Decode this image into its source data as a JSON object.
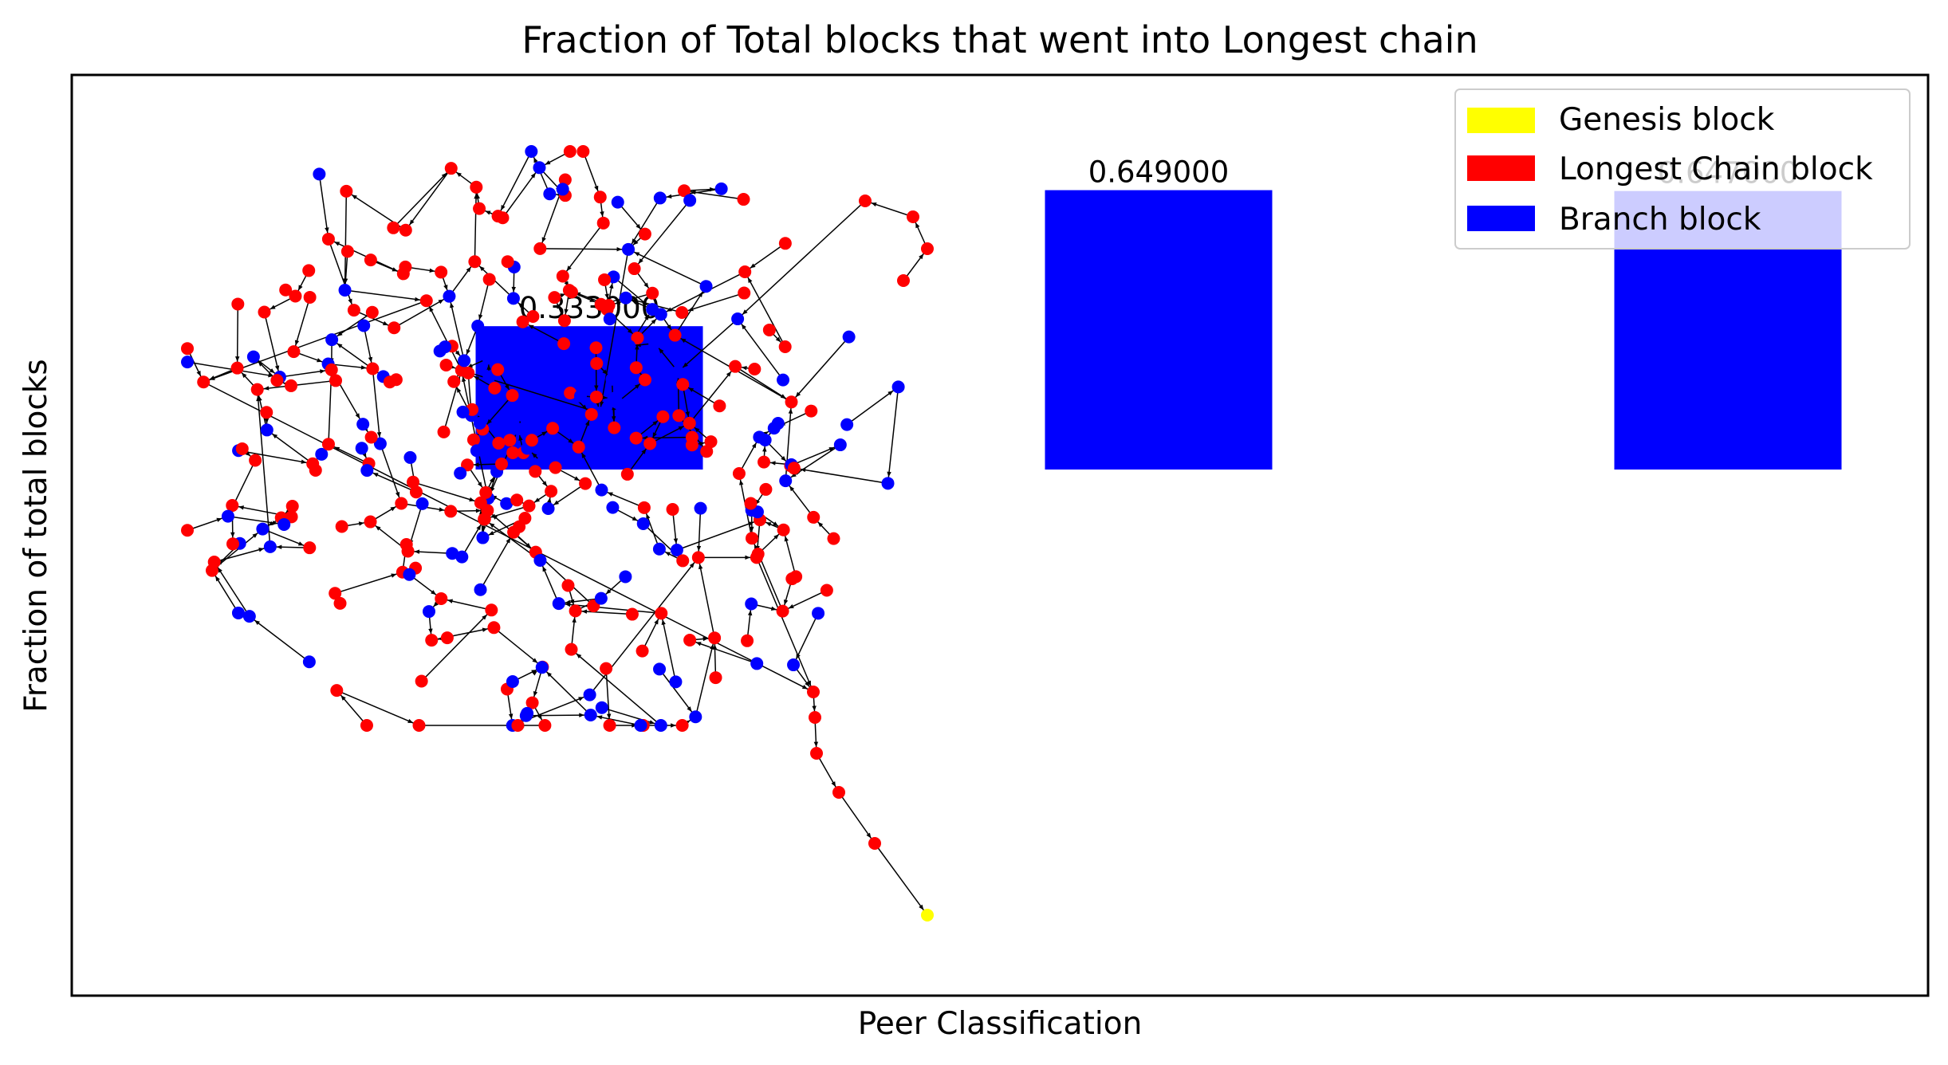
{
  "chart_data": {
    "type": "bar",
    "title": "Fraction of Total blocks that went into Longest chain",
    "xlabel": "Peer Classification",
    "ylabel": "Fraction of total blocks",
    "bar_labels": [
      "0.333000",
      "0.649000",
      "0.647000"
    ],
    "values": [
      0.333,
      0.649,
      0.647
    ],
    "bar_color": "#0000ff",
    "legend": {
      "placement": "top-right",
      "entries": [
        {
          "label": "Genesis block",
          "color": "#ffff00"
        },
        {
          "label": "Longest Chain block",
          "color": "#ff0000"
        },
        {
          "label": "Branch block",
          "color": "#0000ff"
        }
      ]
    },
    "overlay": {
      "type": "block-tree graph",
      "node_colors": {
        "genesis": "#ffff00",
        "longest_chain": "#ff0000",
        "branch": "#0000ff"
      },
      "edge_color": "#000000"
    }
  }
}
